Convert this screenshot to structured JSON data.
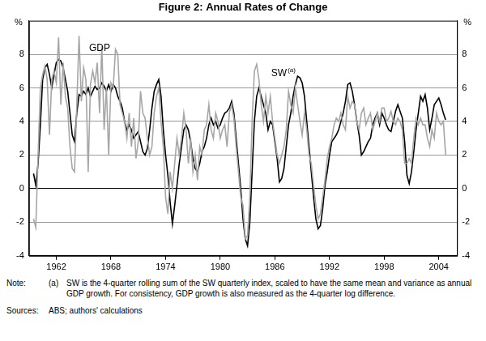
{
  "chart_data": {
    "type": "line",
    "title": "Figure 2: Annual Rates of Change",
    "y_label": "%",
    "y2_label": "%",
    "grid": true,
    "xlim": [
      1959,
      2006
    ],
    "xticks": [
      1962,
      1968,
      1974,
      1980,
      1986,
      1992,
      1998,
      2004
    ],
    "ylim": [
      -4,
      10
    ],
    "yticks": [
      -4,
      -2,
      0,
      2,
      4,
      6,
      8
    ],
    "y2lim": [
      -4,
      10
    ],
    "y2ticks": [
      -4,
      -2,
      0,
      2,
      4,
      6,
      8
    ],
    "annotations": [
      {
        "text": "GDP",
        "x": 1965.6,
        "y": 8.2
      },
      {
        "text": "SW",
        "superscript": "(a)",
        "x": 1985.6,
        "y": 6.7
      }
    ],
    "x": [
      1959.5,
      1959.75,
      1960,
      1960.25,
      1960.5,
      1960.75,
      1961,
      1961.25,
      1961.5,
      1961.75,
      1962,
      1962.25,
      1962.5,
      1962.75,
      1963,
      1963.25,
      1963.5,
      1963.75,
      1964,
      1964.25,
      1964.5,
      1964.75,
      1965,
      1965.25,
      1965.5,
      1965.75,
      1966,
      1966.25,
      1966.5,
      1966.75,
      1967,
      1967.25,
      1967.5,
      1967.75,
      1968,
      1968.25,
      1968.5,
      1968.75,
      1969,
      1969.25,
      1969.5,
      1969.75,
      1970,
      1970.25,
      1970.5,
      1970.75,
      1971,
      1971.25,
      1971.5,
      1971.75,
      1972,
      1972.25,
      1972.5,
      1972.75,
      1973,
      1973.25,
      1973.5,
      1973.75,
      1974,
      1974.25,
      1974.5,
      1974.75,
      1975,
      1975.25,
      1975.5,
      1975.75,
      1976,
      1976.25,
      1976.5,
      1976.75,
      1977,
      1977.25,
      1977.5,
      1977.75,
      1978,
      1978.25,
      1978.5,
      1978.75,
      1979,
      1979.25,
      1979.5,
      1979.75,
      1980,
      1980.25,
      1980.5,
      1980.75,
      1981,
      1981.25,
      1981.5,
      1981.75,
      1982,
      1982.25,
      1982.5,
      1982.75,
      1983,
      1983.25,
      1983.5,
      1983.75,
      1984,
      1984.25,
      1984.5,
      1984.75,
      1985,
      1985.25,
      1985.5,
      1985.75,
      1986,
      1986.25,
      1986.5,
      1986.75,
      1987,
      1987.25,
      1987.5,
      1987.75,
      1988,
      1988.25,
      1988.5,
      1988.75,
      1989,
      1989.25,
      1989.5,
      1989.75,
      1990,
      1990.25,
      1990.5,
      1990.75,
      1991,
      1991.25,
      1991.5,
      1991.75,
      1992,
      1992.25,
      1992.5,
      1992.75,
      1993,
      1993.25,
      1993.5,
      1993.75,
      1994,
      1994.25,
      1994.5,
      1994.75,
      1995,
      1995.25,
      1995.5,
      1995.75,
      1996,
      1996.25,
      1996.5,
      1996.75,
      1997,
      1997.25,
      1997.5,
      1997.75,
      1998,
      1998.25,
      1998.5,
      1998.75,
      1999,
      1999.25,
      1999.5,
      1999.75,
      2000,
      2000.25,
      2000.5,
      2000.75,
      2001,
      2001.25,
      2001.5,
      2001.75,
      2002,
      2002.25,
      2002.5,
      2002.75,
      2003,
      2003.25,
      2003.5,
      2003.75,
      2004,
      2004.25,
      2004.5,
      2004.75
    ],
    "series": [
      {
        "name": "SW",
        "color": "#000000",
        "values": [
          0.9,
          0.2,
          1.5,
          3.8,
          6.5,
          7.2,
          7.4,
          6.8,
          6.0,
          6.8,
          7.5,
          7.7,
          7.6,
          7.2,
          6.5,
          5.8,
          4.5,
          3.2,
          2.8,
          4.5,
          5.6,
          5.5,
          5.8,
          5.6,
          6.0,
          5.5,
          5.8,
          6.1,
          5.9,
          6.0,
          6.3,
          6.1,
          5.8,
          6.2,
          5.8,
          6.2,
          6.0,
          5.5,
          5.2,
          4.8,
          4.0,
          3.5,
          3.8,
          3.5,
          3.0,
          3.2,
          3.4,
          2.8,
          2.2,
          2.0,
          2.4,
          3.5,
          4.8,
          5.8,
          6.2,
          6.5,
          5.5,
          3.5,
          2.0,
          0.8,
          -0.8,
          -2.1,
          -1.0,
          0.2,
          1.5,
          2.5,
          3.5,
          3.8,
          3.5,
          2.8,
          1.8,
          1.2,
          1.0,
          1.5,
          2.2,
          2.5,
          3.0,
          3.8,
          4.2,
          3.8,
          4.0,
          3.6,
          3.8,
          4.2,
          4.5,
          4.6,
          4.8,
          5.2,
          4.5,
          3.0,
          1.5,
          0.0,
          -1.8,
          -3.0,
          -3.4,
          -2.0,
          1.0,
          4.0,
          5.5,
          6.0,
          5.5,
          5.0,
          4.5,
          3.5,
          4.0,
          3.8,
          2.8,
          1.8,
          0.4,
          0.6,
          1.2,
          2.5,
          3.8,
          4.5,
          5.5,
          6.2,
          6.7,
          6.6,
          6.3,
          5.5,
          4.0,
          2.5,
          1.0,
          -0.5,
          -1.8,
          -2.4,
          -2.2,
          -1.2,
          0.2,
          1.0,
          2.0,
          2.8,
          3.0,
          3.2,
          3.5,
          4.0,
          4.5,
          5.2,
          6.2,
          6.3,
          5.8,
          5.0,
          4.0,
          3.2,
          2.0,
          2.2,
          2.5,
          2.8,
          3.0,
          3.8,
          4.2,
          4.5,
          3.8,
          4.5,
          4.2,
          3.8,
          3.5,
          3.4,
          4.0,
          4.6,
          5.0,
          4.6,
          4.2,
          2.8,
          0.8,
          0.3,
          1.0,
          2.2,
          3.5,
          4.5,
          5.5,
          5.2,
          5.6,
          4.8,
          3.5,
          4.2,
          5.0,
          5.2,
          5.4,
          5.0,
          4.5,
          4.1
        ]
      },
      {
        "name": "GDP",
        "color": "#a6a6a6",
        "values": [
          -1.8,
          -2.3,
          2.0,
          6.0,
          6.8,
          7.3,
          6.5,
          3.2,
          6.5,
          7.0,
          6.3,
          9.0,
          5.0,
          7.5,
          5.5,
          4.8,
          2.5,
          1.2,
          1.0,
          5.0,
          9.1,
          5.2,
          7.2,
          6.5,
          1.0,
          6.2,
          7.0,
          6.3,
          7.5,
          4.5,
          8.5,
          3.5,
          6.0,
          2.0,
          6.3,
          6.0,
          8.3,
          8.0,
          5.0,
          4.5,
          4.0,
          3.0,
          4.5,
          2.5,
          4.2,
          1.8,
          2.8,
          5.8,
          4.5,
          4.2,
          3.0,
          2.0,
          2.5,
          4.5,
          5.5,
          6.0,
          4.0,
          2.5,
          -0.5,
          -1.5,
          1.0,
          0.0,
          1.5,
          3.0,
          2.0,
          3.0,
          4.5,
          3.5,
          1.5,
          3.0,
          1.0,
          2.0,
          0.5,
          2.5,
          2.0,
          3.5,
          3.8,
          5.0,
          3.5,
          3.0,
          4.5,
          4.0,
          3.0,
          3.5,
          3.8,
          2.5,
          4.5,
          5.0,
          4.2,
          2.5,
          1.0,
          -0.5,
          -1.0,
          -3.0,
          -2.8,
          -0.5,
          4.0,
          7.0,
          7.4,
          6.5,
          5.0,
          4.0,
          5.5,
          4.5,
          5.5,
          4.0,
          3.0,
          2.0,
          1.5,
          2.0,
          2.5,
          3.5,
          5.8,
          5.0,
          4.5,
          6.0,
          5.0,
          4.0,
          3.2,
          4.5,
          3.5,
          2.0,
          1.5,
          0.2,
          -1.0,
          -1.8,
          -1.5,
          -0.5,
          0.5,
          1.8,
          2.5,
          3.0,
          3.8,
          4.2,
          4.0,
          4.5,
          3.8,
          3.5,
          5.5,
          4.8,
          5.2,
          5.0,
          4.0,
          3.5,
          4.5,
          4.8,
          3.8,
          4.2,
          4.5,
          3.5,
          4.0,
          4.5,
          4.0,
          4.8,
          4.8,
          4.0,
          4.2,
          4.6,
          4.0,
          3.8,
          4.2,
          4.0,
          3.5,
          1.5,
          1.5,
          1.8,
          1.5,
          3.0,
          4.2,
          3.8,
          4.2,
          3.8,
          3.8,
          3.0,
          2.5,
          3.5,
          3.0,
          4.5,
          4.0,
          3.8,
          4.0,
          2.0
        ]
      }
    ],
    "notes": [
      {
        "label": "Note:",
        "mark": "(a)",
        "text": "SW is the 4-quarter rolling sum of the SW quarterly index, scaled to have the same mean and variance as annual GDP growth. For consistency, GDP growth is also measured as the 4-quarter log difference."
      }
    ],
    "sources": {
      "label": "Sources:",
      "text": "ABS; authors' calculations"
    }
  }
}
